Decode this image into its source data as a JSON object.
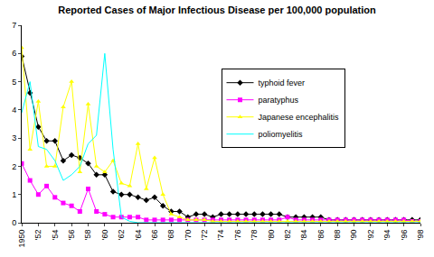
{
  "chart_data": {
    "type": "line",
    "title": "Reported Cases of Major Infectious Disease per 100,000 population",
    "x": [
      1950,
      1951,
      1952,
      1953,
      1954,
      1955,
      1956,
      1957,
      1958,
      1959,
      1960,
      1961,
      1962,
      1963,
      1964,
      1965,
      1966,
      1967,
      1968,
      1969,
      1970,
      1971,
      1972,
      1973,
      1974,
      1975,
      1976,
      1977,
      1978,
      1979,
      1980,
      1981,
      1982,
      1983,
      1984,
      1985,
      1986,
      1987,
      1988,
      1989,
      1990,
      1991,
      1992,
      1993,
      1994,
      1995,
      1996,
      1997,
      1998
    ],
    "series": [
      {
        "name": "typhoid fever",
        "color": "#000000",
        "marker": "diamond",
        "values": [
          5.9,
          4.6,
          3.4,
          2.9,
          2.9,
          2.2,
          2.4,
          2.3,
          2.1,
          1.7,
          1.7,
          1.1,
          1.0,
          1.0,
          0.9,
          0.8,
          0.9,
          0.6,
          0.4,
          0.4,
          0.2,
          0.3,
          0.3,
          0.2,
          0.3,
          0.3,
          0.3,
          0.3,
          0.3,
          0.3,
          0.3,
          0.3,
          0.2,
          0.2,
          0.2,
          0.2,
          0.2,
          0.1,
          0.1,
          0.1,
          0.1,
          0.1,
          0.1,
          0.1,
          0.1,
          0.1,
          0.1,
          0.1,
          0.1
        ]
      },
      {
        "name": "paratyphus",
        "color": "#ff00ff",
        "marker": "square",
        "values": [
          2.1,
          1.5,
          1.0,
          1.3,
          0.9,
          0.7,
          0.6,
          0.4,
          1.2,
          0.4,
          0.3,
          0.2,
          0.2,
          0.2,
          0.2,
          0.1,
          0.1,
          0.1,
          0.1,
          0.1,
          0.1,
          0.1,
          0.1,
          0.1,
          0.1,
          0.1,
          0.1,
          0.1,
          0.1,
          0.1,
          0.1,
          0.1,
          0.2,
          0.1,
          0.1,
          0.1,
          0.1,
          0.1,
          0.1,
          0.1,
          0.1,
          0.1,
          0.1,
          0.1,
          0.1,
          0.1,
          0.1,
          0.05,
          0.05
        ]
      },
      {
        "name": "Japanese encephalitis",
        "color": "#ffff00",
        "marker": "triangle-up",
        "values": [
          6.2,
          2.6,
          4.3,
          2.0,
          2.0,
          4.1,
          5.0,
          1.8,
          4.2,
          2.0,
          1.8,
          2.2,
          1.4,
          1.3,
          2.8,
          1.2,
          2.3,
          1.0,
          0.3,
          0.2,
          0.1,
          0.1,
          0.1,
          0.05,
          0.05,
          0.05,
          0.05,
          0.05,
          0.05,
          0.05,
          0.05,
          0.05,
          0.05,
          0.05,
          0.05,
          0.05,
          0.05,
          0.05,
          0.05,
          0.05,
          0.05,
          0.05,
          0.05,
          0.05,
          0.05,
          0.05,
          0.05,
          0.05,
          0.05
        ]
      },
      {
        "name": "poliomyelitis",
        "color": "#00ffff",
        "values": [
          3.9,
          5.0,
          2.7,
          2.6,
          2.2,
          1.5,
          1.7,
          2.0,
          2.8,
          3.1,
          6.0,
          2.6,
          0.2,
          0.05,
          0,
          0,
          0,
          0,
          0,
          0,
          0,
          0,
          0,
          0,
          0,
          0,
          0,
          0,
          0,
          0,
          0,
          0,
          0,
          0,
          0,
          0,
          0,
          0,
          0,
          0,
          0,
          0,
          0,
          0,
          0,
          0,
          0,
          0,
          0
        ]
      }
    ],
    "xlim": [
      1950,
      1998
    ],
    "xticks": [
      {
        "value": 1950,
        "label": "1950"
      },
      {
        "value": 1952,
        "label": "'52"
      },
      {
        "value": 1954,
        "label": "'54"
      },
      {
        "value": 1956,
        "label": "'56"
      },
      {
        "value": 1958,
        "label": "'58"
      },
      {
        "value": 1960,
        "label": "'60"
      },
      {
        "value": 1962,
        "label": "'62"
      },
      {
        "value": 1964,
        "label": "'64"
      },
      {
        "value": 1966,
        "label": "'66"
      },
      {
        "value": 1968,
        "label": "'68"
      },
      {
        "value": 1970,
        "label": "'70"
      },
      {
        "value": 1972,
        "label": "'72"
      },
      {
        "value": 1974,
        "label": "'74"
      },
      {
        "value": 1976,
        "label": "'76"
      },
      {
        "value": 1978,
        "label": "'78"
      },
      {
        "value": 1980,
        "label": "'80"
      },
      {
        "value": 1982,
        "label": "'82"
      },
      {
        "value": 1984,
        "label": "'84"
      },
      {
        "value": 1986,
        "label": "'86"
      },
      {
        "value": 1988,
        "label": "'88"
      },
      {
        "value": 1990,
        "label": "'90"
      },
      {
        "value": 1992,
        "label": "'92"
      },
      {
        "value": 1994,
        "label": "'94"
      },
      {
        "value": 1996,
        "label": "'96"
      },
      {
        "value": 1998,
        "label": "'98"
      }
    ],
    "ylim": [
      0,
      7
    ],
    "yticks": [
      0,
      1,
      2,
      3,
      4,
      5,
      6,
      7
    ],
    "grid": false,
    "legend": "right"
  }
}
